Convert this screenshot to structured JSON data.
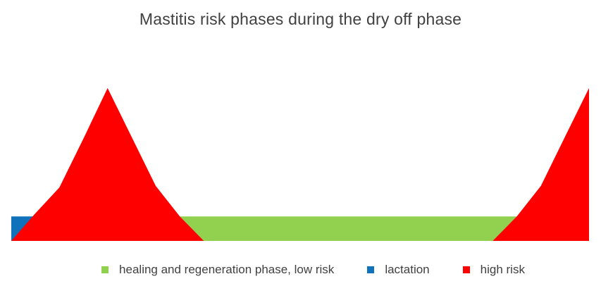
{
  "title": "Mastitis risk phases during the dry off phase",
  "colors": {
    "low_risk": "#92d050",
    "lactation": "#0f72ba",
    "high_risk": "#fe0000",
    "text": "#404040",
    "background": "#ffffff"
  },
  "legend": [
    {
      "label": "healing and regeneration phase, low risk",
      "color_key": "low_risk"
    },
    {
      "label": "lactation",
      "color_key": "lactation"
    },
    {
      "label": "high risk",
      "color_key": "high_risk"
    }
  ],
  "chart_data": {
    "type": "area",
    "title": "Mastitis risk phases during the dry off phase",
    "x": [
      1,
      2,
      3,
      4,
      5,
      6,
      7,
      8,
      9,
      10,
      11,
      12,
      13,
      14,
      15,
      16,
      17,
      18,
      19,
      20,
      21,
      22,
      23,
      24,
      25
    ],
    "series": [
      {
        "name": "healing and regeneration phase, low risk",
        "key": "low_risk",
        "color": "#92d050",
        "values": [
          null,
          null,
          null,
          null,
          null,
          null,
          16,
          16,
          16,
          16,
          16,
          16,
          16,
          16,
          16,
          16,
          16,
          16,
          16,
          16,
          16,
          16,
          16,
          null,
          null
        ]
      },
      {
        "name": "lactation",
        "key": "lactation",
        "color": "#0f72ba",
        "values": [
          16,
          16,
          null,
          null,
          null,
          null,
          null,
          null,
          null,
          null,
          null,
          null,
          null,
          null,
          null,
          null,
          null,
          null,
          null,
          null,
          null,
          null,
          null,
          null,
          null
        ]
      },
      {
        "name": "high risk",
        "key": "high_risk",
        "color": "#fe0000",
        "values": [
          0,
          18,
          35,
          67,
          100,
          68,
          36,
          16,
          0,
          0,
          0,
          0,
          0,
          0,
          0,
          0,
          0,
          0,
          0,
          0,
          0,
          16,
          36,
          68,
          100
        ]
      }
    ],
    "ylim": [
      0,
      100
    ],
    "axes_visible": false,
    "gridlines": false,
    "legend_position": "bottom"
  }
}
